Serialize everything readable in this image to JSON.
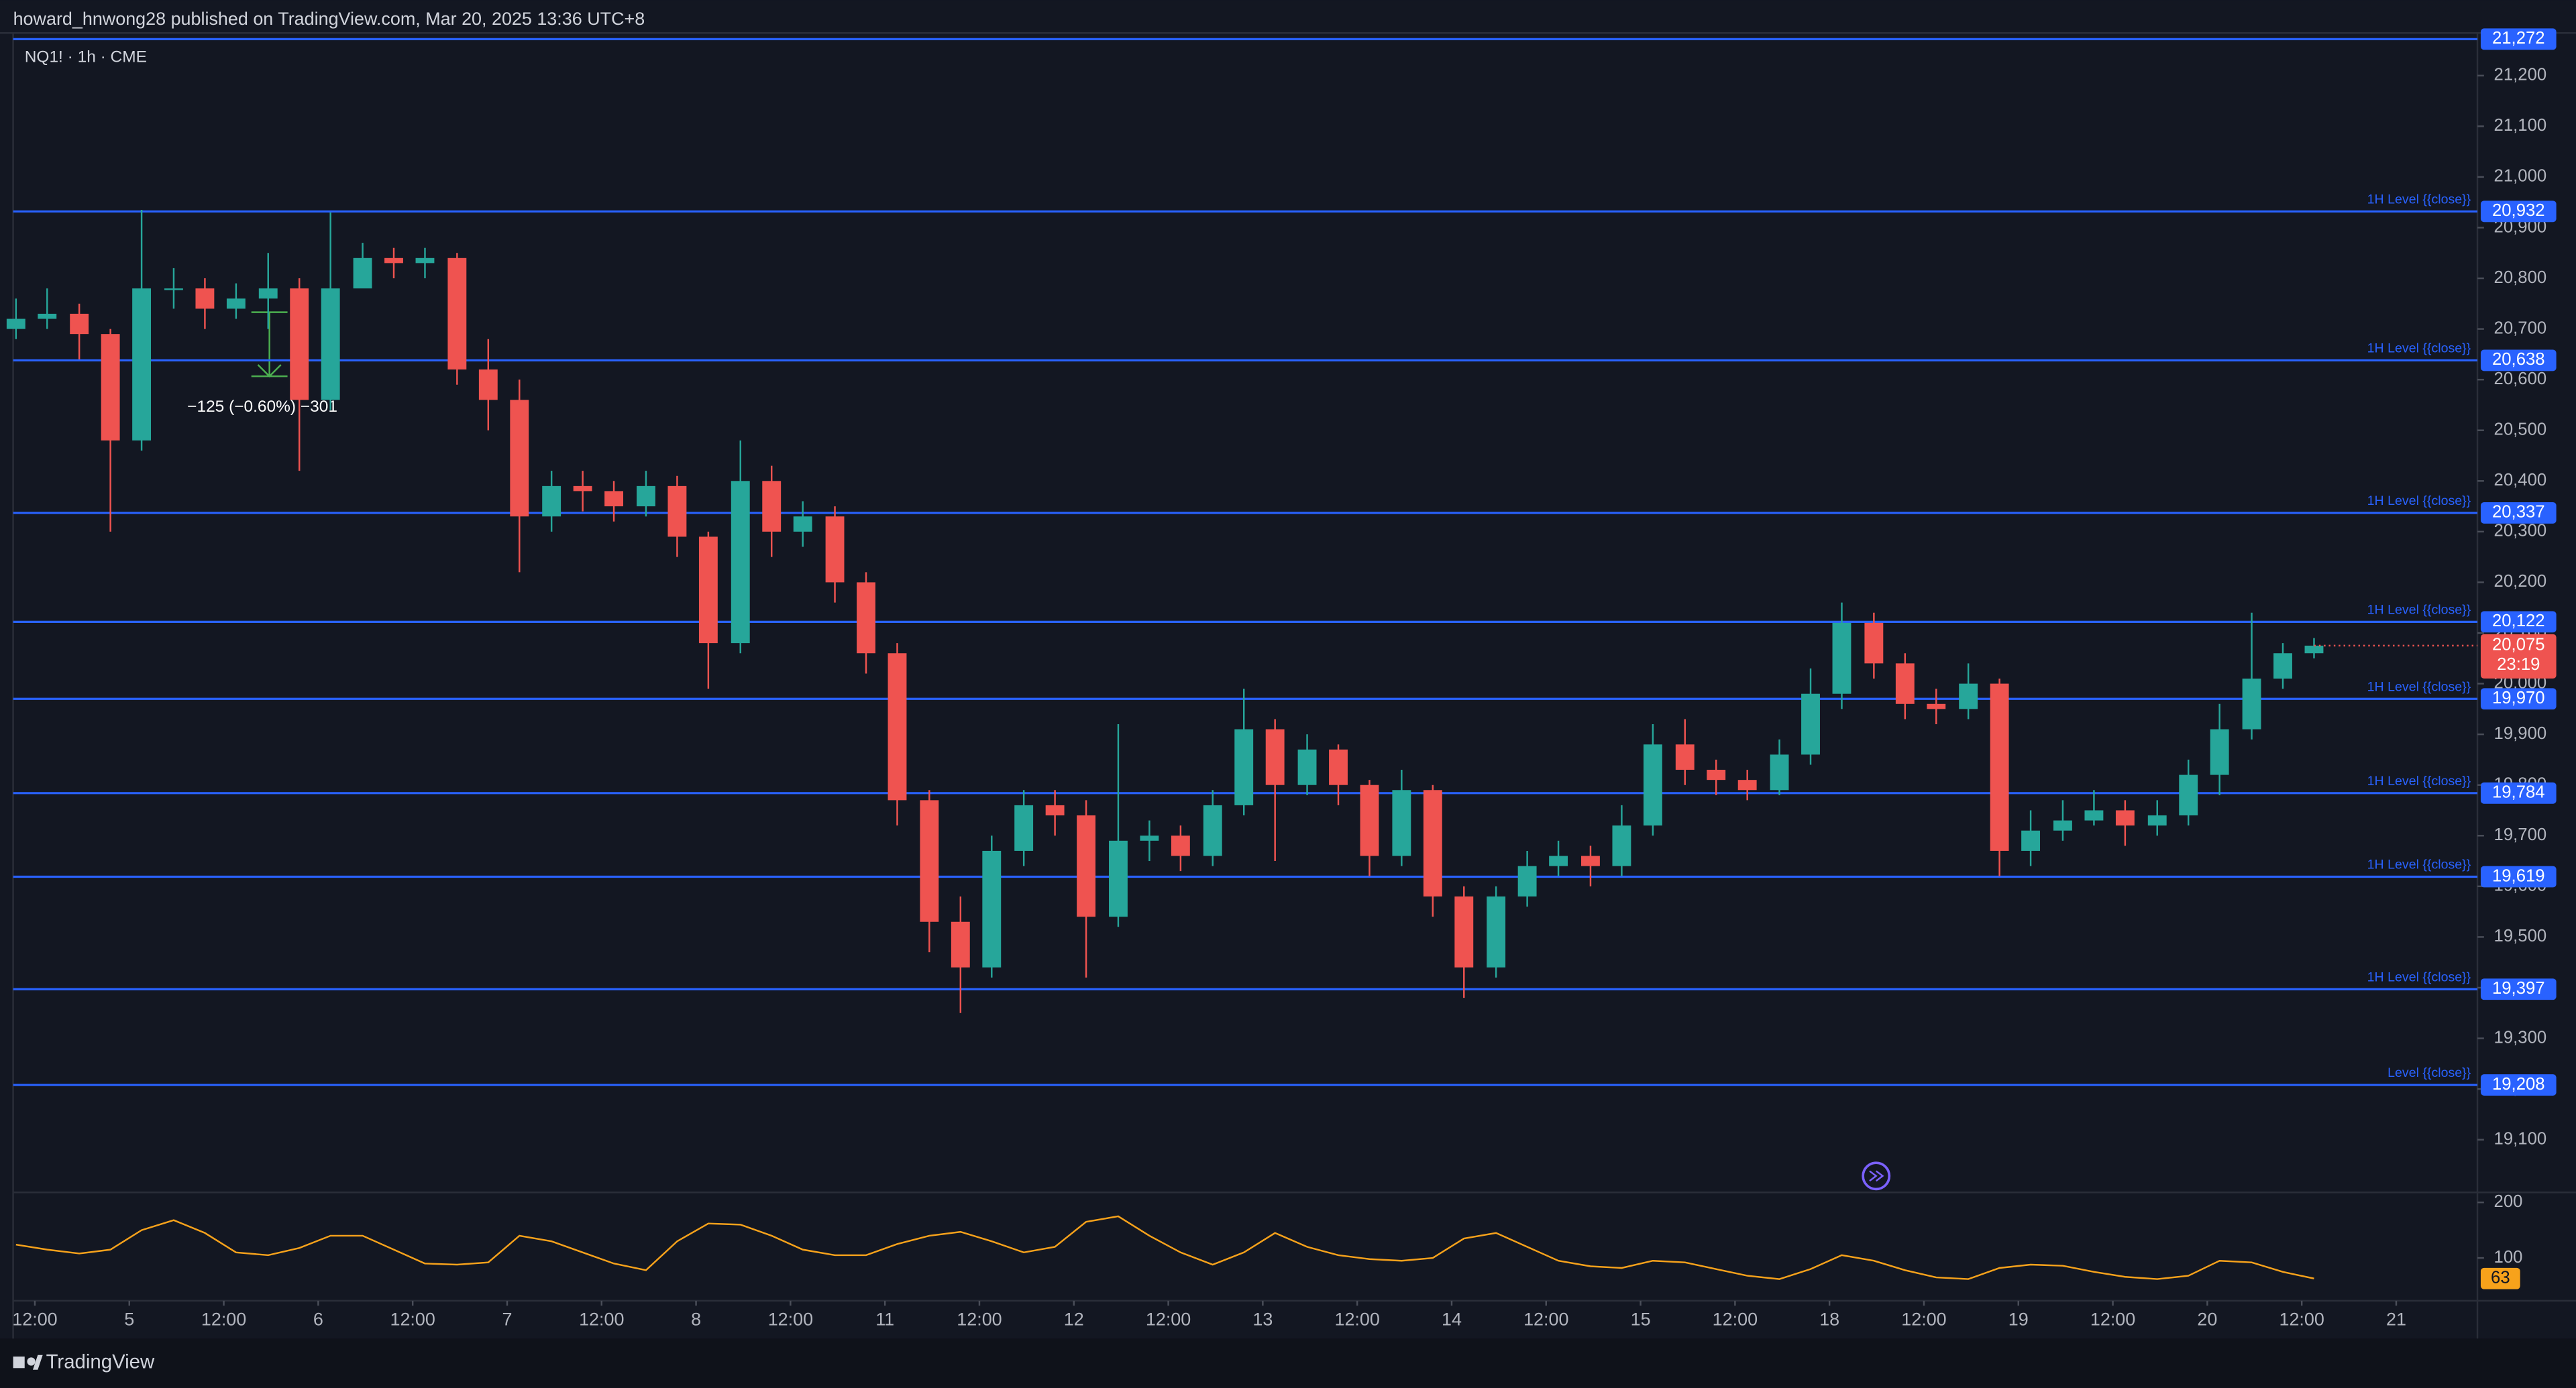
{
  "header": {
    "publisher": "howard_hnwong28 published on TradingView.com, Mar 20, 2025 13:36 UTC+8",
    "footer": "TradingView"
  },
  "chart_data": {
    "type": "candlestick",
    "title": "NQ1! · 1h · CME",
    "x": [
      -0.2,
      0.13,
      0.47,
      0.8,
      1.13,
      1.47,
      1.8,
      2.13,
      2.47,
      2.8,
      3.13,
      3.47,
      3.8,
      4.13,
      4.47,
      4.8,
      5.13,
      5.47,
      5.8,
      6.13,
      6.47,
      6.8,
      7.13,
      7.47,
      7.8,
      8.13,
      8.47,
      8.8,
      9.13,
      9.47,
      9.8,
      10.13,
      10.47,
      10.8,
      11.13,
      11.47,
      11.8,
      12.13,
      12.47,
      12.8,
      13.13,
      13.47,
      13.8,
      14.13,
      14.47,
      14.8,
      15.13,
      15.47,
      15.8,
      16.13,
      16.47,
      16.8,
      17.13,
      17.47,
      17.8,
      18.13,
      18.47,
      18.8,
      19.13,
      19.47,
      19.8,
      20.13,
      20.47,
      20.8,
      21.13,
      21.47,
      21.8,
      22.13,
      22.47,
      22.8,
      23.13,
      23.47,
      23.8,
      24.13
    ],
    "open": [
      20700,
      20720,
      20730,
      20690,
      20480,
      20780,
      20780,
      20740,
      20760,
      20780,
      20560,
      20780,
      20840,
      20830,
      20840,
      20620,
      20560,
      20330,
      20390,
      20380,
      20350,
      20390,
      20290,
      20080,
      20400,
      20300,
      20330,
      20200,
      20060,
      19770,
      19530,
      19440,
      19670,
      19760,
      19740,
      19540,
      19690,
      19700,
      19660,
      19760,
      19910,
      19800,
      19870,
      19800,
      19660,
      19790,
      19580,
      19440,
      19580,
      19640,
      19660,
      19640,
      19720,
      19880,
      19830,
      19810,
      19790,
      19860,
      19980,
      20120,
      20040,
      19960,
      19950,
      20000,
      19670,
      19710,
      19730,
      19750,
      19720,
      19740,
      19820,
      19910,
      20010,
      20060
    ],
    "high": [
      20760,
      20780,
      20750,
      20700,
      20935,
      20820,
      20800,
      20790,
      20850,
      20800,
      20930,
      20870,
      20860,
      20860,
      20850,
      20680,
      20600,
      20420,
      20420,
      20400,
      20420,
      20410,
      20300,
      20480,
      20430,
      20360,
      20350,
      20220,
      20080,
      19790,
      19580,
      19700,
      19790,
      19790,
      19770,
      19920,
      19730,
      19720,
      19790,
      19990,
      19930,
      19900,
      19880,
      19810,
      19830,
      19800,
      19600,
      19600,
      19670,
      19690,
      19680,
      19760,
      19920,
      19930,
      19850,
      19830,
      19890,
      20030,
      20160,
      20140,
      20060,
      19990,
      20040,
      20010,
      19750,
      19770,
      19790,
      19770,
      19770,
      19850,
      19960,
      20140,
      20080,
      20090
    ],
    "low": [
      20680,
      20700,
      20640,
      20300,
      20460,
      20740,
      20700,
      20720,
      20700,
      20420,
      20540,
      20800,
      20800,
      20800,
      20590,
      20500,
      20220,
      20300,
      20340,
      20320,
      20330,
      20250,
      19990,
      20060,
      20250,
      20270,
      20160,
      20020,
      19720,
      19470,
      19350,
      19420,
      19640,
      19700,
      19420,
      19520,
      19650,
      19630,
      19640,
      19740,
      19650,
      19780,
      19760,
      19620,
      19640,
      19540,
      19380,
      19420,
      19560,
      19620,
      19600,
      19620,
      19700,
      19800,
      19780,
      19770,
      19780,
      19840,
      19950,
      20010,
      19930,
      19920,
      19930,
      19620,
      19640,
      19690,
      19720,
      19680,
      19700,
      19720,
      19780,
      19890,
      19990,
      20050
    ],
    "close": [
      20720,
      20730,
      20690,
      20480,
      20780,
      20780,
      20740,
      20760,
      20780,
      20560,
      20780,
      20840,
      20830,
      20840,
      20620,
      20560,
      20330,
      20390,
      20380,
      20350,
      20390,
      20290,
      20080,
      20400,
      20300,
      20330,
      20200,
      20060,
      19770,
      19530,
      19440,
      19670,
      19760,
      19740,
      19540,
      19690,
      19700,
      19660,
      19760,
      19910,
      19800,
      19870,
      19800,
      19660,
      19790,
      19580,
      19440,
      19580,
      19640,
      19660,
      19640,
      19720,
      19880,
      19830,
      19810,
      19790,
      19860,
      19980,
      20120,
      20040,
      19960,
      19950,
      20000,
      19670,
      19710,
      19730,
      19750,
      19720,
      19740,
      19820,
      19910,
      20010,
      20060,
      20075
    ],
    "up_color": "#26a69a",
    "down_color": "#ef5350",
    "close_label": "20,075",
    "countdown": "23:19",
    "xlim": [
      -0.23,
      25.86
    ],
    "xticks": [
      {
        "value": 0,
        "label": "12:00"
      },
      {
        "value": 1,
        "label": "5"
      },
      {
        "value": 2,
        "label": "12:00"
      },
      {
        "value": 3,
        "label": "6"
      },
      {
        "value": 4,
        "label": "12:00"
      },
      {
        "value": 5,
        "label": "7"
      },
      {
        "value": 6,
        "label": "12:00"
      },
      {
        "value": 7,
        "label": "8"
      },
      {
        "value": 8,
        "label": "12:00"
      },
      {
        "value": 9,
        "label": "11"
      },
      {
        "value": 10,
        "label": "12:00"
      },
      {
        "value": 11,
        "label": "12"
      },
      {
        "value": 12,
        "label": "12:00"
      },
      {
        "value": 13,
        "label": "13"
      },
      {
        "value": 14,
        "label": "12:00"
      },
      {
        "value": 15,
        "label": "14"
      },
      {
        "value": 16,
        "label": "12:00"
      },
      {
        "value": 17,
        "label": "15"
      },
      {
        "value": 18,
        "label": "12:00"
      },
      {
        "value": 19,
        "label": "18"
      },
      {
        "value": 20,
        "label": "12:00"
      },
      {
        "value": 21,
        "label": "19"
      },
      {
        "value": 22,
        "label": "12:00"
      },
      {
        "value": 23,
        "label": "20"
      },
      {
        "value": 24,
        "label": "12:00"
      },
      {
        "value": 25,
        "label": "21"
      }
    ],
    "ylim": [
      18996,
      21284
    ],
    "yticks": [
      {
        "value": 19100,
        "label": "19,100"
      },
      {
        "value": 19200,
        "label": "19,200"
      },
      {
        "value": 19300,
        "label": "19,300"
      },
      {
        "value": 19400,
        "label": "19,400"
      },
      {
        "value": 19500,
        "label": "19,500"
      },
      {
        "value": 19600,
        "label": "19,600"
      },
      {
        "value": 19700,
        "label": "19,700"
      },
      {
        "value": 19800,
        "label": "19,800"
      },
      {
        "value": 19900,
        "label": "19,900"
      },
      {
        "value": 20000,
        "label": "20,000"
      },
      {
        "value": 20100,
        "label": "20,100"
      },
      {
        "value": 20200,
        "label": "20,200"
      },
      {
        "value": 20300,
        "label": "20,300"
      },
      {
        "value": 20400,
        "label": "20,400"
      },
      {
        "value": 20500,
        "label": "20,500"
      },
      {
        "value": 20600,
        "label": "20,600"
      },
      {
        "value": 20700,
        "label": "20,700"
      },
      {
        "value": 20800,
        "label": "20,800"
      },
      {
        "value": 20900,
        "label": "20,900"
      },
      {
        "value": 21000,
        "label": "21,000"
      },
      {
        "value": 21100,
        "label": "21,100"
      },
      {
        "value": 21200,
        "label": "21,200"
      }
    ],
    "level_color": "#2962ff",
    "levels": [
      {
        "value": 21272,
        "label": "21,272"
      },
      {
        "value": 20932,
        "label": "20,932",
        "name": "1H Level {{close}}"
      },
      {
        "value": 20638,
        "label": "20,638",
        "name": "1H Level {{close}}"
      },
      {
        "value": 20337,
        "label": "20,337",
        "name": "1H Level {{close}}"
      },
      {
        "value": 20122,
        "label": "20,122",
        "name": "1H Level {{close}}"
      },
      {
        "value": 19970,
        "label": "19,970",
        "name": "1H Level {{close}}"
      },
      {
        "value": 19784,
        "label": "19,784",
        "name": "1H Level {{close}}"
      },
      {
        "value": 19619,
        "label": "19,619",
        "name": "1H Level {{close}}"
      },
      {
        "value": 19397,
        "label": "19,397",
        "name": "1H Level {{close}}"
      },
      {
        "value": 19208,
        "label": "19,208",
        "name": "Level {{close}}"
      }
    ],
    "annotation": "−125 (−0.60%) −301",
    "indicator": {
      "type": "line",
      "color": "#f7a21b",
      "ylim": [
        23,
        218
      ],
      "yticks": [
        100,
        200
      ],
      "values": [
        124,
        115,
        108,
        115,
        150,
        168,
        145,
        110,
        105,
        118,
        140,
        140,
        115,
        90,
        88,
        92,
        140,
        130,
        110,
        90,
        78,
        130,
        162,
        160,
        140,
        115,
        105,
        105,
        125,
        140,
        147,
        130,
        110,
        120,
        165,
        175,
        140,
        110,
        88,
        110,
        145,
        120,
        105,
        98,
        95,
        100,
        135,
        145,
        120,
        95,
        85,
        82,
        95,
        92,
        80,
        68,
        62,
        80,
        105,
        95,
        78,
        65,
        62,
        82,
        88,
        86,
        75,
        66,
        62,
        68,
        95,
        92,
        75,
        63
      ]
    }
  }
}
